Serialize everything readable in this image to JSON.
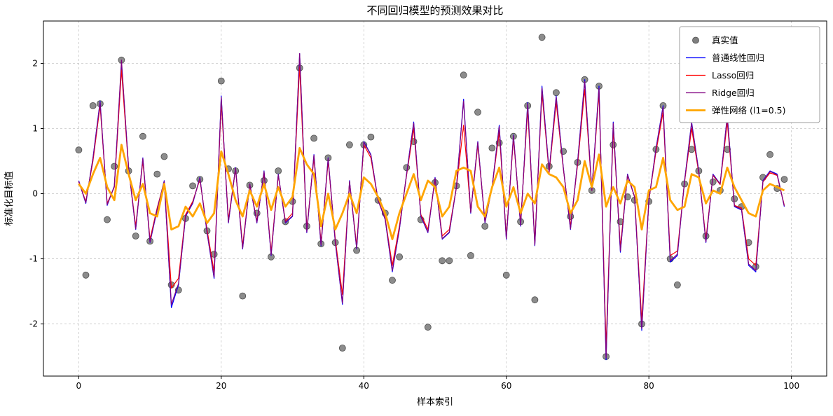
{
  "chart_data": {
    "type": "line",
    "title": "不同回归模型的预测效果对比",
    "xlabel": "样本索引",
    "ylabel": "标准化目标值",
    "xlim": [
      -4.95,
      104.95
    ],
    "ylim": [
      -2.8,
      2.65
    ],
    "xticks": [
      0,
      20,
      40,
      60,
      80,
      100
    ],
    "yticks": [
      -2,
      -1,
      0,
      1,
      2
    ],
    "grid": true,
    "grid_style": "dashed",
    "legend_position": "upper right",
    "x_range": [
      0,
      99
    ],
    "series": [
      {
        "id": "actual",
        "name": "真实值",
        "type": "scatter",
        "color": "#7f7f7f",
        "edge_color": "#4d4d4d",
        "values": [
          0.67,
          -1.25,
          1.35,
          1.38,
          -0.4,
          0.42,
          2.05,
          0.35,
          -0.65,
          0.88,
          -0.73,
          0.3,
          0.57,
          -1.4,
          -1.48,
          -0.38,
          0.12,
          0.22,
          -0.57,
          -0.93,
          1.73,
          0.38,
          0.35,
          -1.57,
          0.13,
          -0.3,
          0.2,
          -0.97,
          0.35,
          -0.43,
          -0.12,
          1.93,
          -0.5,
          0.85,
          -0.77,
          0.55,
          -0.75,
          -2.37,
          0.75,
          -0.87,
          0.75,
          0.87,
          -0.1,
          -0.3,
          -1.33,
          -0.97,
          0.4,
          0.8,
          -0.4,
          -2.05,
          0.17,
          -1.03,
          -1.03,
          0.12,
          1.82,
          -0.95,
          1.25,
          -0.5,
          0.7,
          0.78,
          -1.25,
          0.88,
          -0.43,
          1.35,
          -1.63,
          2.4,
          0.42,
          1.55,
          0.65,
          -0.35,
          0.48,
          1.75,
          0.05,
          1.65,
          -2.5,
          0.75,
          -0.43,
          -0.05,
          -0.1,
          -2.0,
          -0.12,
          0.68,
          1.35,
          -1.0,
          -1.4,
          0.15,
          0.68,
          0.35,
          -0.65,
          0.18,
          0.05,
          0.68,
          -0.08,
          -0.2,
          -0.75,
          -1.12,
          0.25,
          0.6,
          0.08,
          0.22
        ]
      },
      {
        "id": "linear",
        "name": "普通线性回归",
        "type": "line",
        "color": "#0000ff",
        "width": 1.2,
        "values": [
          0.2,
          -0.15,
          0.55,
          1.42,
          -0.18,
          0.12,
          2.0,
          0.4,
          -0.55,
          0.55,
          -0.75,
          -0.25,
          0.2,
          -1.75,
          -1.4,
          -0.35,
          -0.15,
          0.25,
          -0.6,
          -1.3,
          1.5,
          -0.45,
          0.4,
          -0.85,
          0.15,
          -0.45,
          0.35,
          -0.95,
          0.3,
          -0.45,
          -0.35,
          2.15,
          -0.6,
          0.6,
          -0.8,
          0.55,
          -0.75,
          -1.7,
          0.2,
          -0.85,
          0.8,
          0.6,
          -0.1,
          -0.4,
          -1.2,
          -0.55,
          0.3,
          1.1,
          -0.35,
          -0.6,
          0.25,
          -0.7,
          -0.6,
          0.1,
          1.45,
          -0.3,
          0.8,
          -0.45,
          0.1,
          1.05,
          -0.7,
          0.9,
          -0.5,
          1.4,
          -0.8,
          1.65,
          0.35,
          1.5,
          0.4,
          -0.55,
          0.5,
          1.75,
          0.05,
          1.65,
          -2.55,
          1.1,
          -0.9,
          0.3,
          -0.05,
          -2.1,
          -0.1,
          0.7,
          1.35,
          -1.05,
          -0.95,
          0.2,
          1.1,
          0.35,
          -0.75,
          0.3,
          0.15,
          1.2,
          -0.2,
          -0.25,
          -1.1,
          -1.2,
          0.2,
          0.35,
          0.3,
          -0.2
        ]
      },
      {
        "id": "lasso",
        "name": "Lasso回归",
        "type": "line",
        "color": "#ff0000",
        "width": 1.2,
        "values": [
          0.18,
          -0.12,
          0.5,
          1.35,
          -0.15,
          0.1,
          1.9,
          0.38,
          -0.5,
          0.5,
          -0.7,
          -0.22,
          0.18,
          -1.45,
          -1.3,
          -0.32,
          -0.12,
          0.22,
          -0.55,
          -1.2,
          1.4,
          -0.4,
          0.38,
          -0.8,
          0.14,
          -0.42,
          0.32,
          -0.9,
          0.28,
          -0.42,
          -0.3,
          1.95,
          -0.55,
          0.55,
          -0.75,
          0.5,
          -0.7,
          -1.55,
          0.18,
          -0.8,
          0.75,
          0.55,
          -0.1,
          -0.38,
          -1.1,
          -0.5,
          0.28,
          1.0,
          -0.32,
          -0.55,
          0.22,
          -0.65,
          -0.55,
          0.1,
          1.05,
          -0.28,
          0.75,
          -0.42,
          0.1,
          0.95,
          -0.65,
          0.85,
          -0.45,
          1.3,
          -0.75,
          1.55,
          0.32,
          1.4,
          0.38,
          -0.5,
          0.45,
          1.6,
          0.05,
          1.55,
          -2.35,
          1.0,
          -0.82,
          0.28,
          -0.05,
          -1.95,
          -0.1,
          0.65,
          1.25,
          -0.95,
          -0.88,
          0.18,
          1.0,
          0.32,
          -0.7,
          0.28,
          0.14,
          1.1,
          -0.18,
          -0.22,
          -1.0,
          -1.1,
          0.18,
          0.32,
          0.28,
          -0.18
        ]
      },
      {
        "id": "ridge",
        "name": "Ridge回归",
        "type": "line",
        "color": "#800080",
        "width": 1.2,
        "values": [
          0.19,
          -0.14,
          0.54,
          1.4,
          -0.17,
          0.11,
          2.05,
          0.39,
          -0.54,
          0.54,
          -0.74,
          -0.24,
          0.19,
          -1.7,
          -1.38,
          -0.34,
          -0.14,
          0.24,
          -0.59,
          -1.28,
          1.48,
          -0.44,
          0.39,
          -0.84,
          0.15,
          -0.44,
          0.34,
          -0.94,
          0.29,
          -0.44,
          -0.34,
          2.15,
          -0.59,
          0.59,
          -0.79,
          0.54,
          -0.74,
          -1.68,
          0.19,
          -0.84,
          0.79,
          0.59,
          -0.1,
          -0.39,
          -1.18,
          -0.54,
          0.29,
          1.08,
          -0.34,
          -0.59,
          0.24,
          -0.69,
          -0.59,
          0.1,
          1.42,
          -0.29,
          0.79,
          -0.44,
          0.1,
          1.03,
          -0.69,
          0.89,
          -0.49,
          1.38,
          -0.79,
          1.62,
          0.34,
          1.48,
          0.39,
          -0.54,
          0.49,
          1.72,
          0.05,
          1.62,
          -2.52,
          1.08,
          -0.88,
          0.29,
          -0.05,
          -2.07,
          -0.1,
          0.69,
          1.33,
          -1.03,
          -0.93,
          0.19,
          1.08,
          0.34,
          -0.74,
          0.29,
          0.15,
          1.18,
          -0.19,
          -0.24,
          -1.08,
          -1.18,
          0.19,
          0.34,
          0.29,
          -0.19
        ]
      },
      {
        "id": "elastic",
        "name": "弹性网络 (l1=0.5)",
        "type": "line",
        "color": "#ffa500",
        "width": 2.8,
        "values": [
          0.15,
          0.0,
          0.3,
          0.55,
          0.1,
          -0.1,
          0.75,
          0.3,
          -0.1,
          0.15,
          -0.3,
          -0.35,
          0.15,
          -0.55,
          -0.5,
          -0.2,
          -0.35,
          -0.15,
          -0.45,
          -0.3,
          0.65,
          0.3,
          -0.1,
          -0.35,
          0.05,
          -0.2,
          0.15,
          -0.25,
          0.1,
          -0.2,
          -0.05,
          0.7,
          0.45,
          0.3,
          -0.5,
          0.0,
          -0.55,
          -0.3,
          0.0,
          -0.3,
          0.25,
          0.15,
          -0.05,
          -0.3,
          -0.7,
          -0.3,
          0.0,
          0.3,
          -0.1,
          0.2,
          0.1,
          -0.35,
          -0.2,
          0.35,
          0.4,
          0.35,
          -0.2,
          -0.35,
          0.1,
          0.4,
          -0.2,
          0.1,
          -0.3,
          0.0,
          -0.15,
          0.45,
          0.3,
          0.25,
          0.1,
          -0.3,
          -0.1,
          0.5,
          0.1,
          0.6,
          -0.2,
          0.1,
          -0.15,
          0.2,
          0.1,
          -0.55,
          0.05,
          0.1,
          0.55,
          -0.1,
          -0.25,
          -0.2,
          0.3,
          0.25,
          -0.15,
          0.05,
          0.0,
          0.4,
          0.1,
          -0.1,
          -0.3,
          -0.35,
          0.05,
          0.15,
          0.1,
          0.05
        ]
      }
    ]
  }
}
